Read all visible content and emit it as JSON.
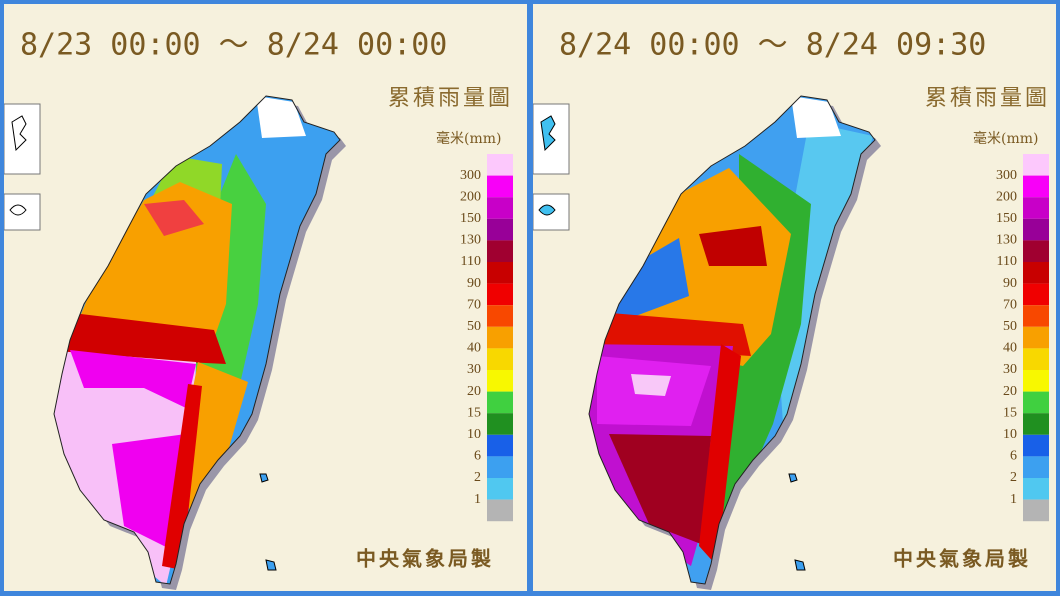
{
  "panels": [
    {
      "time_range": "8/23 00:00 ～ 8/24 00:00",
      "title": "累積雨量圖",
      "unit": "毫米(mm)",
      "credit": "中央氣象局製"
    },
    {
      "time_range": "8/24 00:00 ～ 8/24 09:30",
      "title": "累積雨量圖",
      "unit": "毫米(mm)",
      "credit": "中央氣象局製"
    }
  ],
  "legend": [
    300,
    200,
    150,
    130,
    110,
    90,
    70,
    50,
    40,
    30,
    20,
    15,
    10,
    6,
    2,
    1
  ]
}
